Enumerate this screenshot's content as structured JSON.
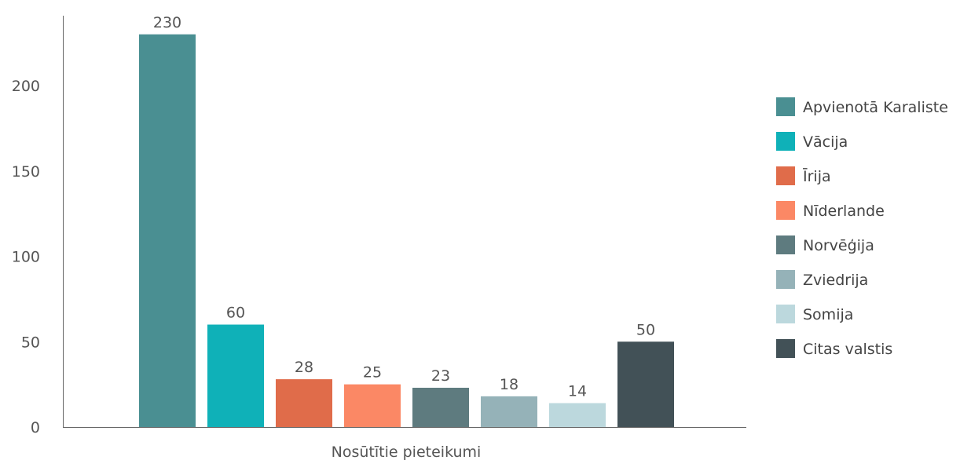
{
  "chart_data": {
    "type": "bar",
    "xlabel": "Nosūtītie pieteikumi",
    "ylabel": "",
    "ylim": [
      0,
      240
    ],
    "yticks": [
      0,
      50,
      100,
      150,
      200
    ],
    "grid": false,
    "legend_position": "right",
    "series": [
      {
        "name": "Apvienotā Karaliste",
        "value": 230,
        "color": "#4a8f92"
      },
      {
        "name": "Vācija",
        "value": 60,
        "color": "#0fb1b8"
      },
      {
        "name": "Īrija",
        "value": 28,
        "color": "#e06c4a"
      },
      {
        "name": "Nīderlande",
        "value": 25,
        "color": "#fb8865"
      },
      {
        "name": "Norvēģija",
        "value": 23,
        "color": "#5e7b7f"
      },
      {
        "name": "Zviedrija",
        "value": 18,
        "color": "#95b2b8"
      },
      {
        "name": "Somija",
        "value": 14,
        "color": "#bcd8dd"
      },
      {
        "name": "Citas valstis",
        "value": 50,
        "color": "#425157"
      }
    ]
  }
}
